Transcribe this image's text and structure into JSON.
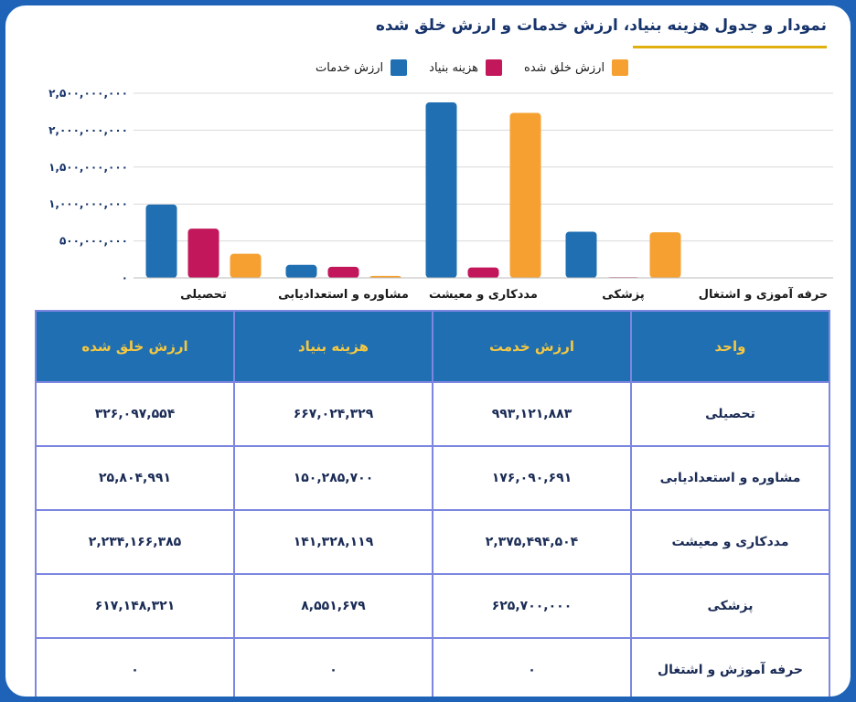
{
  "title": "نمودار و جدول هزینه بنیاد، ارزش خدمات و ارزش خلق شده",
  "legend": [
    {
      "label": "ارزش خدمات",
      "color": "#1f6fb2"
    },
    {
      "label": "هزینه بنیاد",
      "color": "#c2185b"
    },
    {
      "label": "ارزش خلق شده",
      "color": "#f5a030"
    }
  ],
  "chart_data": {
    "type": "bar",
    "categories": [
      "تحصیلی",
      "مشاوره و استعدادیابی",
      "مددکاری و معیشت",
      "پزشکی",
      "حرفه آموزی و اشتغال"
    ],
    "series": [
      {
        "name": "ارزش خدمات",
        "values": [
          993121883,
          176090691,
          2375494504,
          625700000,
          0
        ]
      },
      {
        "name": "هزینه بنیاد",
        "values": [
          667024329,
          150285700,
          141328119,
          8551679,
          0
        ]
      },
      {
        "name": "ارزش خلق شده",
        "values": [
          326097554,
          25804991,
          2234166385,
          617148321,
          0
        ]
      }
    ],
    "ylim": [
      0,
      2500000000
    ],
    "yticks": [
      "۰",
      "۵۰۰,۰۰۰,۰۰۰",
      "۱,۰۰۰,۰۰۰,۰۰۰",
      "۱,۵۰۰,۰۰۰,۰۰۰",
      "۲,۰۰۰,۰۰۰,۰۰۰",
      "۲,۵۰۰,۰۰۰,۰۰۰"
    ],
    "grid": true,
    "legend_position": "top"
  },
  "table": {
    "headers": [
      "واحد",
      "ارزش خدمت",
      "هزینه بنیاد",
      "ارزش خلق شده"
    ],
    "rows": [
      [
        "تحصیلی",
        "۹۹۳,۱۲۱,۸۸۳",
        "۶۶۷,۰۲۴,۳۲۹",
        "۳۲۶,۰۹۷,۵۵۴"
      ],
      [
        "مشاوره و استعدادیابی",
        "۱۷۶,۰۹۰,۶۹۱",
        "۱۵۰,۲۸۵,۷۰۰",
        "۲۵,۸۰۴,۹۹۱"
      ],
      [
        "مددکاری و معیشت",
        "۲,۳۷۵,۴۹۴,۵۰۴",
        "۱۴۱,۳۲۸,۱۱۹",
        "۲,۲۳۴,۱۶۶,۳۸۵"
      ],
      [
        "پزشکی",
        "۶۲۵,۷۰۰,۰۰۰",
        "۸,۵۵۱,۶۷۹",
        "۶۱۷,۱۴۸,۳۲۱"
      ],
      [
        "حرفه آموزش و اشتغال",
        "۰",
        "۰",
        "۰"
      ]
    ]
  }
}
